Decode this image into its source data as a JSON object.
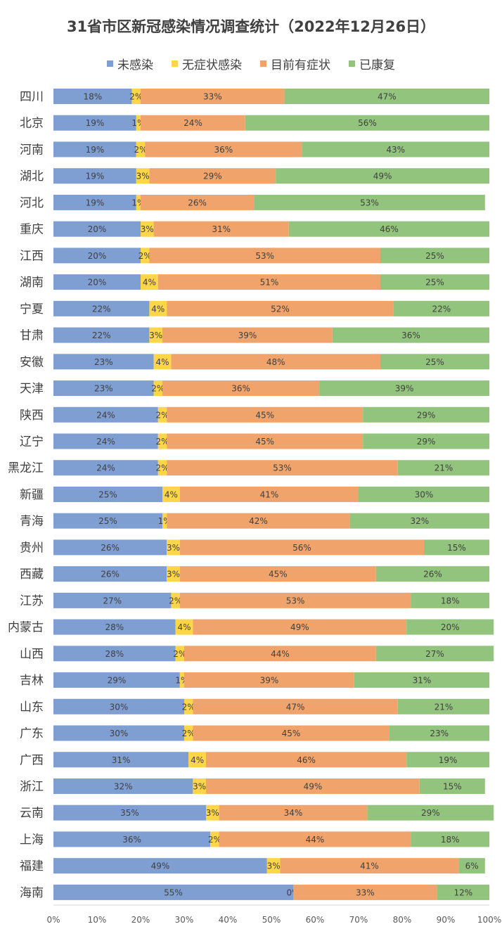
{
  "chart_data": {
    "type": "bar",
    "orientation": "horizontal",
    "stacked": "percent",
    "title": "31省市区新冠感染情况调查统计（2022年12月26日）",
    "legend_position": "top",
    "categories": [
      "四川",
      "北京",
      "河南",
      "湖北",
      "河北",
      "重庆",
      "江西",
      "湖南",
      "宁夏",
      "甘肃",
      "安徽",
      "天津",
      "陕西",
      "辽宁",
      "黑龙江",
      "新疆",
      "青海",
      "贵州",
      "西藏",
      "江苏",
      "内蒙古",
      "山西",
      "吉林",
      "山东",
      "广东",
      "广西",
      "浙江",
      "云南",
      "上海",
      "福建",
      "海南"
    ],
    "series": [
      {
        "name": "未感染",
        "color": "#7F9ED2",
        "values": [
          18,
          19,
          19,
          19,
          19,
          20,
          20,
          20,
          22,
          22,
          23,
          23,
          24,
          24,
          24,
          25,
          25,
          26,
          26,
          27,
          28,
          28,
          29,
          30,
          30,
          31,
          32,
          35,
          36,
          49,
          55
        ]
      },
      {
        "name": "无症状感染",
        "color": "#FFD54A",
        "values": [
          2,
          1,
          2,
          3,
          1,
          3,
          2,
          4,
          4,
          3,
          4,
          2,
          2,
          2,
          2,
          4,
          1,
          3,
          3,
          2,
          4,
          2,
          1,
          2,
          2,
          4,
          3,
          3,
          2,
          3,
          0
        ]
      },
      {
        "name": "目前有症状",
        "color": "#F0A46B",
        "values": [
          33,
          24,
          36,
          29,
          26,
          31,
          53,
          51,
          52,
          39,
          48,
          36,
          45,
          45,
          53,
          41,
          42,
          56,
          45,
          53,
          49,
          44,
          39,
          47,
          45,
          46,
          49,
          34,
          44,
          41,
          33
        ]
      },
      {
        "name": "已康复",
        "color": "#93C47D",
        "values": [
          47,
          56,
          43,
          49,
          53,
          46,
          25,
          25,
          22,
          36,
          25,
          39,
          29,
          29,
          21,
          30,
          32,
          15,
          26,
          18,
          20,
          27,
          31,
          21,
          23,
          19,
          15,
          29,
          18,
          6,
          12
        ]
      }
    ],
    "value_suffix": "%",
    "xlim": [
      0,
      100
    ],
    "x_ticks": [
      "0%",
      "10%",
      "20%",
      "30%",
      "40%",
      "50%",
      "60%",
      "70%",
      "80%",
      "90%",
      "100%"
    ],
    "grid": false
  }
}
